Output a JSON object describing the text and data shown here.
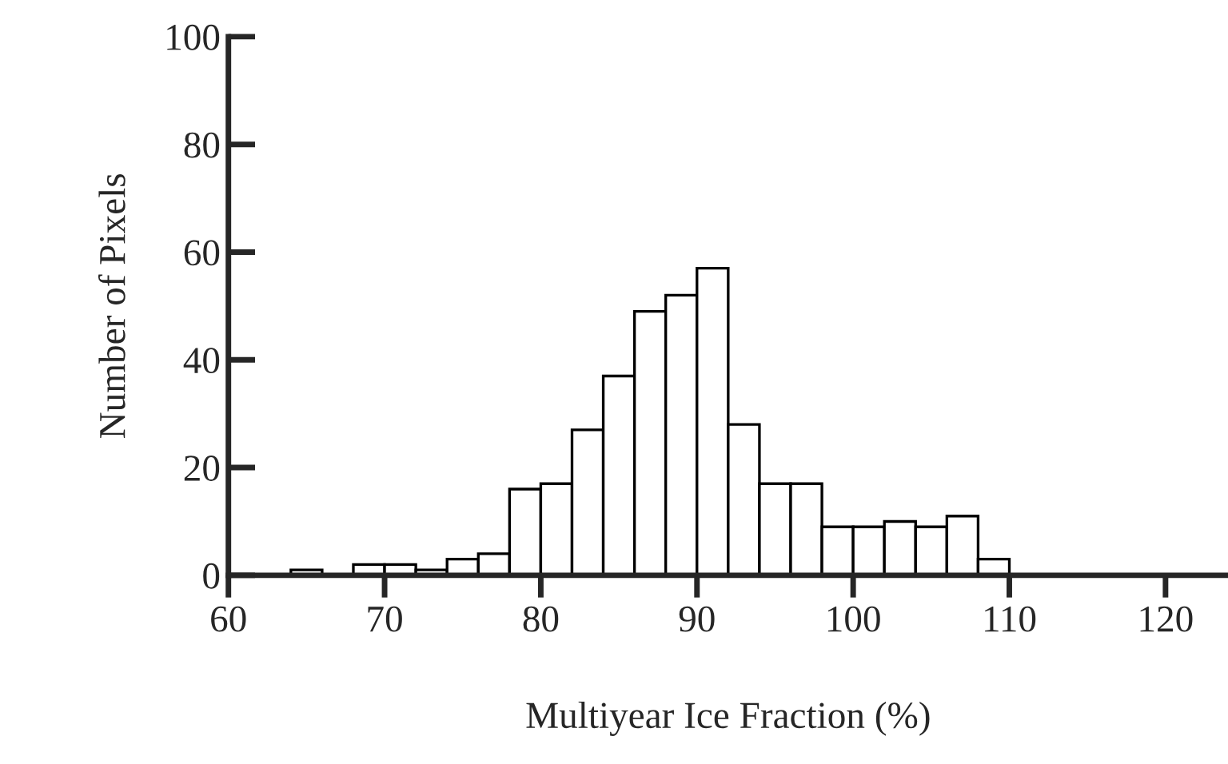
{
  "chart_data": {
    "type": "histogram",
    "xlabel": "Multiyear Ice Fraction (%)",
    "ylabel": "Number of Pixels",
    "bins": [
      64,
      66,
      68,
      70,
      72,
      74,
      76,
      78,
      80,
      82,
      84,
      86,
      88,
      90,
      92,
      94,
      96,
      98,
      100,
      102,
      104,
      106,
      108,
      110
    ],
    "values": [
      1,
      null,
      2,
      2,
      1,
      3,
      4,
      16,
      17,
      27,
      37,
      49,
      52,
      57,
      28,
      17,
      17,
      9,
      9,
      10,
      9,
      11,
      3
    ],
    "color": "#ffffff",
    "xlim": [
      60,
      124
    ],
    "xticks": [
      60,
      70,
      80,
      90,
      100,
      110,
      120
    ],
    "ylim": [
      0,
      100
    ],
    "yticks": [
      0,
      20,
      40,
      60,
      80,
      100
    ],
    "grid": false
  }
}
